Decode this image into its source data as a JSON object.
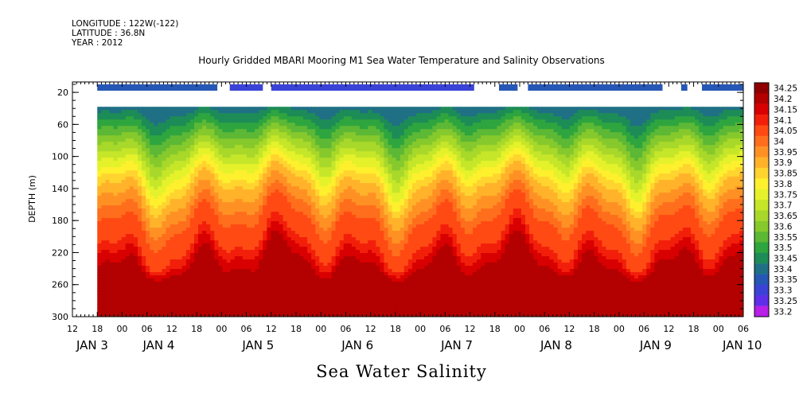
{
  "header": {
    "longitude": "LONGITUDE : 122W(-122)",
    "latitude": "LATITUDE : 36.8N",
    "year": "YEAR : 2012",
    "title": "Hourly Gridded MBARI Mooring M1 Sea Water Temperature and Salinity Observations"
  },
  "footer": {
    "variable_title": "Sea Water Salinity"
  },
  "chart_data": {
    "type": "heatmap",
    "title": "Hourly Gridded MBARI Mooring M1 Sea Water Temperature and Salinity Observations",
    "subtitle": "Sea Water Salinity",
    "ylabel": "DEPTH (m)",
    "ylim": [
      300,
      0
    ],
    "y_ticks": [
      20,
      60,
      100,
      140,
      180,
      220,
      260,
      300
    ],
    "x_unit": "hours since JAN 3 00:00, 2012",
    "xlim": [
      12,
      174
    ],
    "x_hour_ticks": [
      {
        "h": 12,
        "label": "12"
      },
      {
        "h": 18,
        "label": "18"
      },
      {
        "h": 24,
        "label": "00"
      },
      {
        "h": 30,
        "label": "06"
      },
      {
        "h": 36,
        "label": "12"
      },
      {
        "h": 42,
        "label": "18"
      },
      {
        "h": 48,
        "label": "00"
      },
      {
        "h": 54,
        "label": "06"
      },
      {
        "h": 60,
        "label": "12"
      },
      {
        "h": 66,
        "label": "18"
      },
      {
        "h": 72,
        "label": "00"
      },
      {
        "h": 78,
        "label": "06"
      },
      {
        "h": 84,
        "label": "12"
      },
      {
        "h": 90,
        "label": "18"
      },
      {
        "h": 96,
        "label": "00"
      },
      {
        "h": 102,
        "label": "06"
      },
      {
        "h": 108,
        "label": "12"
      },
      {
        "h": 114,
        "label": "18"
      },
      {
        "h": 120,
        "label": "00"
      },
      {
        "h": 126,
        "label": "06"
      },
      {
        "h": 132,
        "label": "12"
      },
      {
        "h": 138,
        "label": "18"
      },
      {
        "h": 144,
        "label": "00"
      },
      {
        "h": 150,
        "label": "06"
      },
      {
        "h": 156,
        "label": "12"
      },
      {
        "h": 162,
        "label": "18"
      },
      {
        "h": 168,
        "label": "00"
      },
      {
        "h": 174,
        "label": "06"
      }
    ],
    "x_day_labels": [
      {
        "h": 4,
        "label": "JAN  3"
      },
      {
        "h": 29,
        "label": "JAN  4"
      },
      {
        "h": 53,
        "label": "JAN  5"
      },
      {
        "h": 77,
        "label": "JAN  6"
      },
      {
        "h": 101,
        "label": "JAN  7"
      },
      {
        "h": 125,
        "label": "JAN  8"
      },
      {
        "h": 149,
        "label": "JAN  9"
      },
      {
        "h": 169,
        "label": "JAN 10"
      }
    ],
    "legend": {
      "placement": "right",
      "levels": [
        "34.25",
        "34.2",
        "34.15",
        "34.1",
        "34.05",
        "34",
        "33.95",
        "33.9",
        "33.85",
        "33.8",
        "33.75",
        "33.7",
        "33.65",
        "33.6",
        "33.55",
        "33.5",
        "33.45",
        "33.4",
        "33.35",
        "33.3",
        "33.25",
        "33.2"
      ],
      "colors": [
        "#8f0000",
        "#b30000",
        "#d80000",
        "#f21f0a",
        "#ff4a14",
        "#ff6e1c",
        "#ff9124",
        "#ffb22a",
        "#ffd42f",
        "#fff02e",
        "#e5f22b",
        "#c6e629",
        "#a8d82a",
        "#86c92c",
        "#5cb835",
        "#2ea53e",
        "#1d8c56",
        "#1f7085",
        "#2757b5",
        "#3b43d6",
        "#5e2ee8",
        "#b81fe8"
      ]
    },
    "near_surface_band": {
      "depth": 10,
      "segments": [
        {
          "start": 18,
          "end": 47,
          "value": 33.35
        },
        {
          "start": 50,
          "end": 58,
          "value": 33.3
        },
        {
          "start": 60,
          "end": 109,
          "value": 33.3
        },
        {
          "start": 115,
          "end": 119.5,
          "value": 33.35
        },
        {
          "start": 122,
          "end": 154.5,
          "value": 33.35
        },
        {
          "start": 159,
          "end": 160.5,
          "value": 33.35
        },
        {
          "start": 164,
          "end": 179.5,
          "value": 33.35
        },
        {
          "start": 168,
          "end": 174,
          "value": 33.35
        }
      ]
    },
    "main_field": {
      "x_start": 18,
      "x_end": 174,
      "depth_top": 38,
      "depth_bottom": 300,
      "profile_depths": [
        38,
        45,
        55,
        65,
        75,
        85,
        95,
        105,
        115,
        125,
        135,
        150,
        165,
        180,
        195,
        210,
        222,
        235,
        245,
        255,
        265,
        280,
        300
      ],
      "profile_values": [
        33.4,
        33.45,
        33.5,
        33.55,
        33.6,
        33.65,
        33.7,
        33.75,
        33.8,
        33.85,
        33.9,
        33.95,
        34.0,
        34.05,
        34.05,
        34.1,
        34.15,
        34.2,
        34.22,
        34.25,
        34.22,
        34.2,
        34.2
      ],
      "notes": "salinity increases with depth; 34.25 core near 245-270 m"
    }
  }
}
